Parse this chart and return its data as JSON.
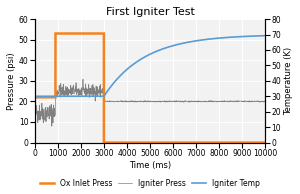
{
  "title": "First Igniter Test",
  "xlabel": "Time (ms)",
  "ylabel_left": "Pressure (psi)",
  "ylabel_right": "Temperature (K)",
  "xlim": [
    0,
    10000
  ],
  "ylim_left": [
    0,
    60
  ],
  "ylim_right": [
    0,
    80
  ],
  "yticks_left": [
    0,
    10,
    20,
    30,
    40,
    50,
    60
  ],
  "yticks_right": [
    0,
    10,
    20,
    30,
    40,
    50,
    60,
    70,
    80
  ],
  "xticks": [
    0,
    1000,
    2000,
    3000,
    4000,
    5000,
    6000,
    7000,
    8000,
    9000,
    10000
  ],
  "ox_color": "#F4821F",
  "igniter_press_color": "#808080",
  "igniter_temp_color": "#5B9BD5",
  "background_color": "#FFFFFF",
  "plot_bg_color": "#F2F2F2",
  "grid_color": "#FFFFFF",
  "legend_labels": [
    "Ox Inlet Press",
    "Igniter Press",
    "Igniter Temp"
  ],
  "title_fontsize": 8,
  "axis_fontsize": 6,
  "tick_fontsize": 5.5,
  "legend_fontsize": 5.5,
  "ox_linewidth": 1.8,
  "press_linewidth": 0.5,
  "temp_linewidth": 1.2
}
